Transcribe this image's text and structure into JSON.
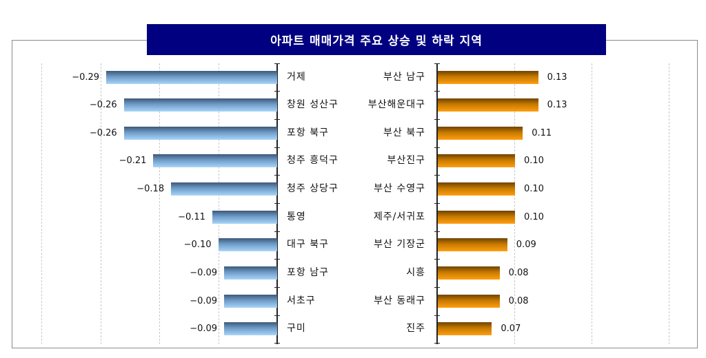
{
  "title": "아파트 매매가격 주요 상승 및 하락 지역",
  "colors": {
    "title_bg": "#000080",
    "decline_bar": "#7fb3e0",
    "rise_bar": "#f39200"
  },
  "chart_data": [
    {
      "type": "bar",
      "orientation": "horizontal",
      "title": "아파트 매매가격 주요 상승 및 하락 지역",
      "series_name": "하락 지역",
      "categories": [
        "거제",
        "창원 성산구",
        "포항 북구",
        "청주 흥덕구",
        "청주 상당구",
        "통영",
        "대구 북구",
        "포항 남구",
        "서초구",
        "구미"
      ],
      "values": [
        -0.29,
        -0.26,
        -0.26,
        -0.21,
        -0.18,
        -0.11,
        -0.1,
        -0.09,
        -0.09,
        -0.09
      ],
      "value_labels": [
        "-0.29",
        "-0.26",
        "-0.26",
        "-0.21",
        "-0.18",
        "-0.11",
        "-0.10",
        "-0.09",
        "-0.09",
        "-0.09"
      ],
      "xlim": [
        -0.4,
        0
      ],
      "grid": true,
      "bar_color": "#7fb3e0"
    },
    {
      "type": "bar",
      "orientation": "horizontal",
      "series_name": "상승 지역",
      "categories": [
        "부산 남구",
        "부산해운대구",
        "부산 북구",
        "부산진구",
        "부산 수영구",
        "제주/서귀포",
        "부산 기장군",
        "시흥",
        "부산 동래구",
        "진주"
      ],
      "values": [
        0.13,
        0.13,
        0.11,
        0.1,
        0.1,
        0.1,
        0.09,
        0.08,
        0.08,
        0.07
      ],
      "value_labels": [
        "0.13",
        "0.13",
        "0.11",
        "0.10",
        "0.10",
        "0.10",
        "0.09",
        "0.08",
        "0.08",
        "0.07"
      ],
      "xlim": [
        0,
        0.3
      ],
      "grid": true,
      "bar_color": "#f39200"
    }
  ]
}
